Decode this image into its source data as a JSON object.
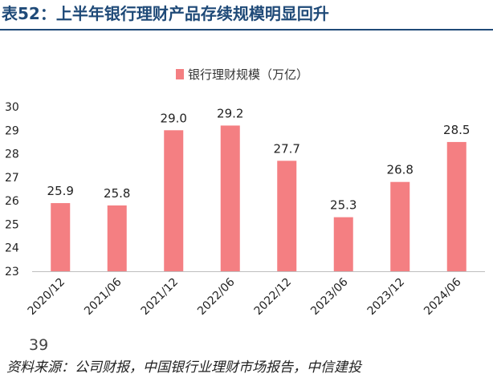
{
  "header": {
    "title": "表52：上半年银行理财产品存续规模明显回升"
  },
  "chart_data": {
    "type": "bar",
    "categories": [
      "2020/12",
      "2021/06",
      "2021/12",
      "2022/06",
      "2022/12",
      "2023/06",
      "2023/12",
      "2024/06"
    ],
    "series": [
      {
        "name": "银行理财规模（万亿）",
        "values": [
          25.9,
          25.8,
          29.0,
          29.2,
          27.7,
          25.3,
          26.8,
          28.5
        ],
        "labels": [
          "25.9",
          "25.8",
          "29.0",
          "29.2",
          "27.7",
          "25.3",
          "26.8",
          "28.5"
        ]
      }
    ],
    "ylim": [
      23,
      30
    ],
    "yticks": [
      "23",
      "24",
      "25",
      "26",
      "27",
      "28",
      "29",
      "30"
    ],
    "grid": false,
    "legend_position": "top-center",
    "colors": {
      "bar": "#f47f82"
    }
  },
  "footer": {
    "page_number": "39",
    "source": "资料来源：公司财报，中国银行业理财市场报告，中信建投"
  }
}
